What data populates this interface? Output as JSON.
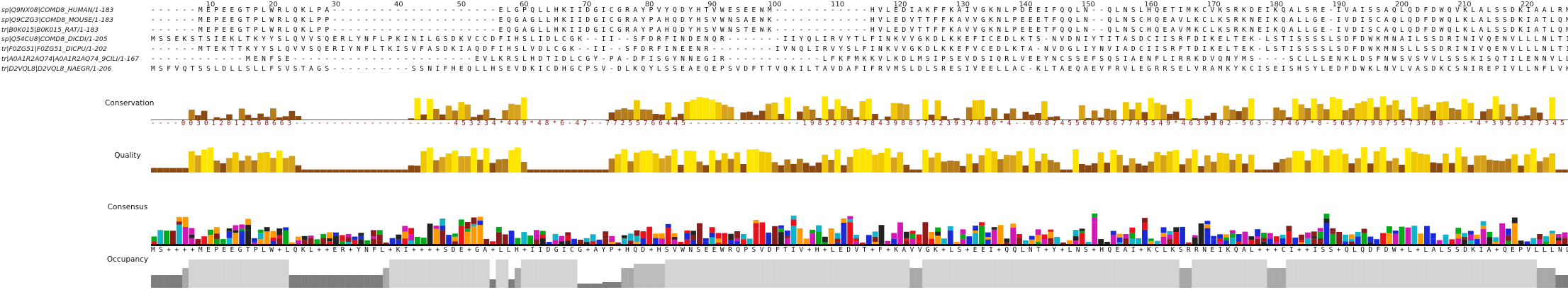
{
  "ruler": {
    "ticks": [
      "10",
      "20",
      "30",
      "40",
      "50",
      "60",
      "70",
      "80",
      "90",
      "100",
      "110",
      "120",
      "130",
      "140",
      "150",
      "160",
      "170",
      "180",
      "190",
      "200",
      "210",
      "220"
    ]
  },
  "sequences": [
    {
      "id": "sp|Q9NX08|COMD8_HUMAN/1-183",
      "seq": "- - - - - - M E P E E G T P L W R L Q K L P A - - - - - - - - - - - - - - - - - - - - - E L G P Q L L H K I I D G I C G R A Y P V Y Q D Y H T V W E S E E W M - - - - - - - - - - - - H V L E D I A K F F K A I V G K N L P D E E I F Q Q L N - - Q L N S L H Q E T I M K C V K S R K D E I K Q A L S R E - I V A I S S A Q L Q D F D W Q V K L A L S S D K I A A L R M P - - L L S L H L D V K E N G E V K P Y S I E M S R E E L Q N L I Q S L E A A N K V V L Q L K -"
    },
    {
      "id": "sp|Q9CZG3|COMD8_MOUSE/1-183",
      "seq": "- - - - - - M E P E E G T P L W R L Q K L P P - - - - - - - - - - - - - - - - - - - - - E Q G A G L L H K I I D G I C G R A Y P A H Q D Y H S V W N S A E W K - - - - - - - - - - - - H V L E D V T T F F K A V V G K N L P E E E T F Q Q L N - - Q L N S C H Q E A V L K C L K S R K N E I K Q A L L G E - I V D I S C A Q L Q D F D W Q L K L A L S S D K I A T L Q M P - - L L N L H L D V K E D D K V K P Y T V E M S K E E L Q S L I S S L E A A N K V V L Q L K -"
    },
    {
      "id": "tr|B0K015|B0K015_RAT/1-183",
      "seq": "- - - - - - M E P E E G T P L W R L Q K L P P - - - - - - - - - - - - - - - - - - - - - E Q G A G L L H K I I D G I C G R A Y P A H Q D Y H S V W N S T E W K - - - - - - - - - - - - H V L E D V T T F F K A V V G K N L P E E E T F Q Q L N - - Q L N S C H Q E A V M K C L K S R K N E I K Q A L L G E - I V D I S C A Q L Q D F D W Q L K L A L S S D K I A T L Q M P - - L L N L H L D V K E D D K V K P Y T V E M S K E E L Q S L I S S L E A A N K V V L Q L K -"
    },
    {
      "id": "sp|Q54CU8|COMD8_DICDI/1-205",
      "seq": "M S S E K S T S I E K L T K Y Y S L Q V V S Q E R L Y N F L P K I N I L G S D K V C C D F I H S L I D L C G K - - I I - - S F D R F I N D E N Q R - - - - - - - I I Y Q L I R V Y T L F I N K V V G K D L K K E F I C E D L K T S - N V D N I Y T I T A S D C I I S R F D I K E L T E K - L S T I S S S S L S D F D W K M N A I L S S D R I N I V Q E N V L L L N L T I E T N I N D K K E Q V L I E L S K K E L D H I L E T F D Q I N E V S F - - -"
    },
    {
      "id": "tr|F0ZG51|F0ZG51_DICPU/1-202",
      "seq": "- - - - - - M T E K T T K Y Y S L Q V V S Q E R I Y N F L T K I S V F A S D K I A Q D F I H S L V D L C G K - - I I - - S F D R F I N E E N R - - - - - - - - I V N Q L I R V Y S L F I N K V V G K D L K K E F V C E D L K T A - N V D G L I Y N V I A D C I I S R F T D I K E L T E K - L S T I S S S S L S D F D W K M N S L L S S D R I N I V Q E N V L L L N L T I E T N I N D K K E Q V L I E L S K K E L D H I L E T F N D Q I N D V I Q S L K"
    },
    {
      "id": "tr|A0A1R2AQ74|A0A1R2AQ74_9CILI/1-167",
      "seq": "- - - - - - - - - - - - M E N F S E - - - - - - - - - - - - - - - - - - - - - - - E V L K R S L H D T I D L C G Y - P A - D F I S G Y N N E G I R - - - - - - - - - - - - L F K F M K K V L K D L M S I P S E V D S I Q R L V E E Y N C S S E F S Q S I A E N F L I R R K D V Q N Y M S - - - - S C L L S E N K L D S F N W S V S V V L S S S K I S Q T I L E N N V L L L L L E T I N V N D S Y L S Q K V I L E F N Y K E L C F R I E Q I N E V E K D K C L G Y -"
    },
    {
      "id": "tr|D2VQL8|D2VQL8_NAEGR/1-206",
      "seq": "M S F V Q T S S L D L L S L L F S V S T A G S - - - - - - - - - - S S N I F H E Q L L H S E V D K I C D H G C P S V - D L K Q Y L S S E A E Q E P S V D F T T V Q K I L T A V D A F I F R V M S L D L S R E S I V E E L L A C - K L T A E Q A E V F R V L E G R R S E L V R A M K Y K C I S E I S H S Y L E D F D W K L N V L V A S D K C S N I R E P I V L L N F L V K S E N E Q K V R E V L V E L T K K D L D N I L S E F G K I Q N Q L Q K I S V"
    }
  ],
  "labels": {
    "conservation": "Conservation",
    "quality": "Quality",
    "consensus": "Consensus",
    "occupancy": "Occupancy"
  },
  "conservation_digits": "- - - - 0 0 3 0 1 2 0 1 2 1 6 8 6 6 3 - - - - - - - - - - - - - - - - - - - - - 4 5 3 2 3 4 * 4 4 9 * 4 8 * 6 - 4 7 - - 7 7 2 5 5 7 6 6 4 4 5 - - - - - - - - - - - - - - - 1 9 8 5 2 6 3 4 7 8 4 3 9 8 8 5 7 5 2 3 9 3 7 4 8 6 * 4 - - 6 6 8 7 4 5 5 6 6 7 5 6 7 7 4 5 5 4 9 * 4 6 3 9 3 0 2 - 5 6 3 - 2 7 4 6 7 * 8 - 5 6 5 7 7 9 8 7 5 5 7 3 7 6 8 - - - * 4 * 3 9 5 6 3 2 7 3 4 5 6 3 6 5 5 9 8 6 7 9 - 5 4 8 - 6 3 8 4 3 7 6 5 4 5 6 0 1 - -",
  "consensus_text": "M S + + + + M E P E E G T P L W + L Q K L + + E R + Y N F L + K I + + + + S D E + G A + L L H + I I D G I C G + A Y P + H Q D + H S V W N S E E W R Q P S V D F T I V + H + L E D V T + F + K A V V G K + L S + E E I + Q Q L N T + Y + L N S + H Q E A I + K C L K S R R N E I K Q A L + + + C I + + I S S + Q L Q D F D W + L + L A L S S D K I A + Q E P V L L L N L H L D + K E + D K V K P V L + E + S K K E L + + + I + S + E A + N K V V L Q L K"
}
